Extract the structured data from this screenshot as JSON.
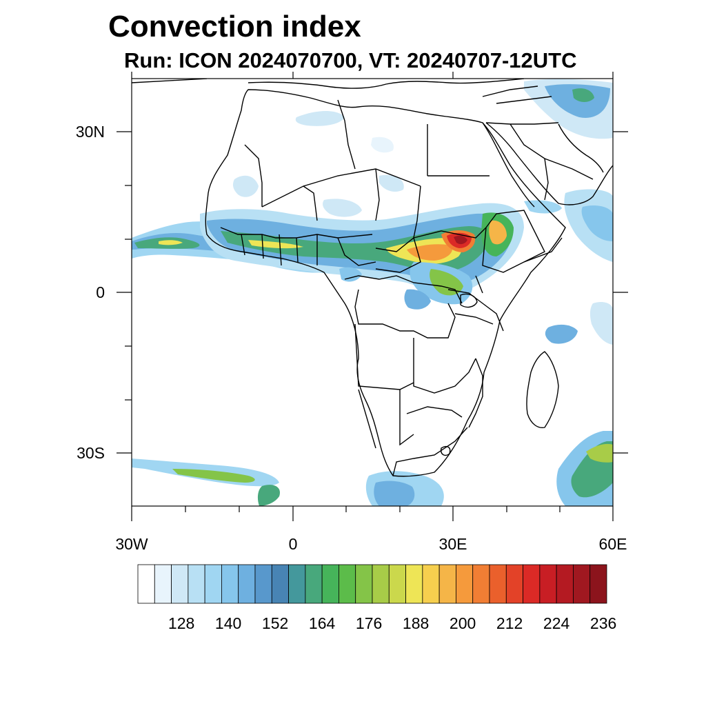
{
  "title": "Convection index",
  "subtitle": "Run: ICON 2024070700,  VT: 20240707-12UTC",
  "map": {
    "lon_range": [
      -30,
      60
    ],
    "lat_range": [
      -40,
      40
    ],
    "lon_ticks": [
      "30W",
      "0",
      "30E",
      "60E"
    ],
    "lat_ticks": [
      "30N",
      "0",
      "30S"
    ]
  },
  "colorbar": {
    "labels": [
      "128",
      "140",
      "152",
      "164",
      "176",
      "188",
      "200",
      "212",
      "224",
      "236"
    ],
    "colors": [
      "#ffffff",
      "#e8f4fc",
      "#cfe8f6",
      "#b8e0f4",
      "#a0d6f2",
      "#86c6ec",
      "#6eb0e0",
      "#5898cc",
      "#4884b4",
      "#44989c",
      "#48a87c",
      "#46b45a",
      "#5cbc4a",
      "#84c448",
      "#a8cc48",
      "#cbd84c",
      "#eee556",
      "#f6cf4e",
      "#f5b548",
      "#f59a3c",
      "#f17e34",
      "#ea602c",
      "#e34228",
      "#db2a26",
      "#c81e24",
      "#b41a22",
      "#a01820",
      "#8c141c"
    ]
  }
}
